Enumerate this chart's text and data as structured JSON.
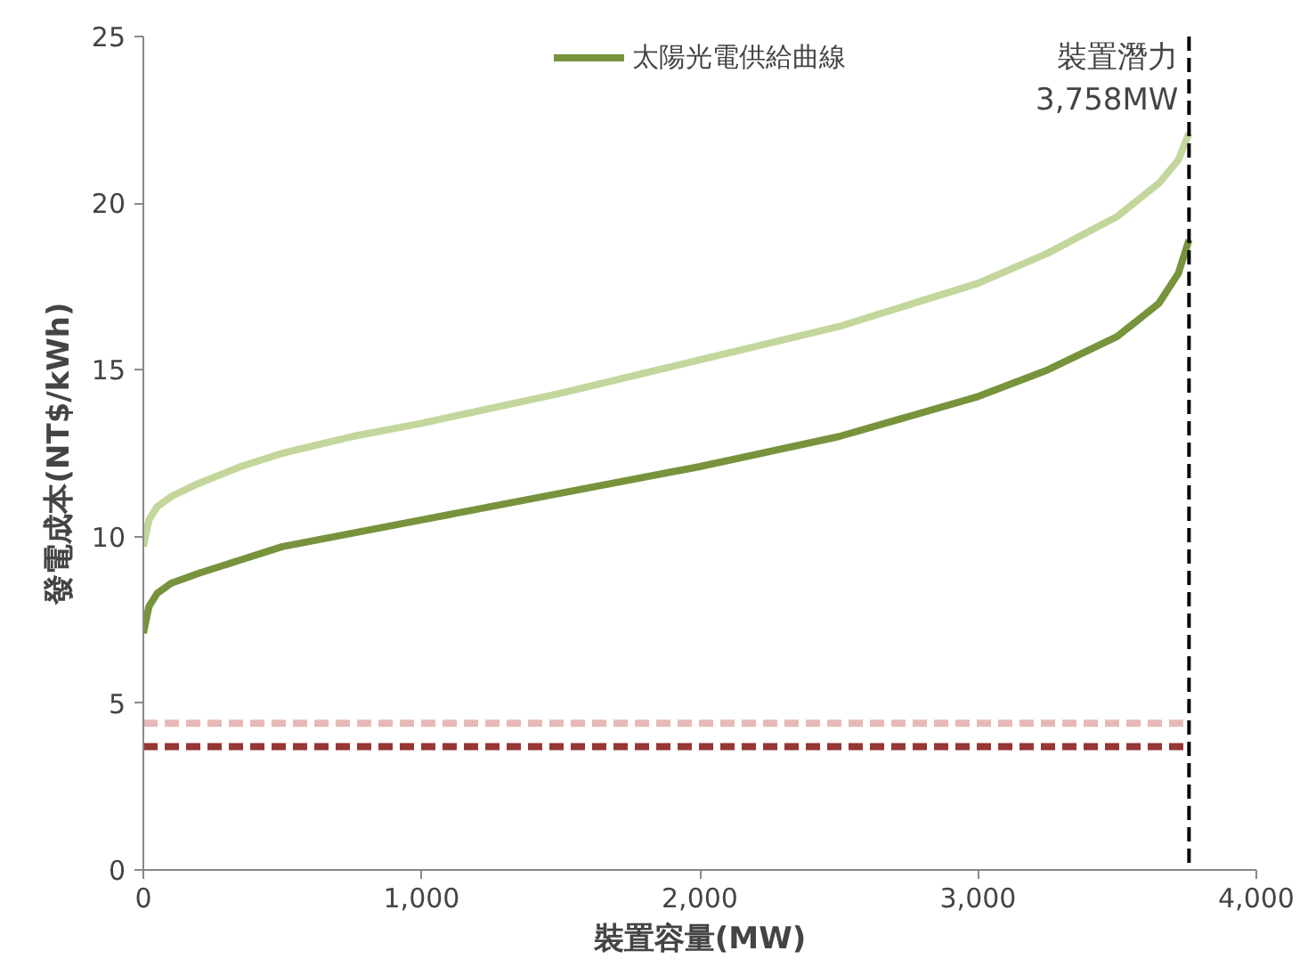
{
  "chart_data": {
    "type": "line",
    "xlabel": "裝置容量(MW)",
    "ylabel": "發電成本(NT$/kWh)",
    "xlim": [
      0,
      4000
    ],
    "ylim": [
      0,
      25
    ],
    "xticks": [
      0,
      {
        "value": 1000,
        "label": "1,000"
      },
      {
        "value": 2000,
        "label": "2,000"
      },
      {
        "value": 3000,
        "label": "3,000"
      },
      {
        "value": 4000,
        "label": "4,000"
      }
    ],
    "yticks": [
      0,
      5,
      10,
      15,
      20,
      25
    ],
    "grid": false,
    "legend": "top",
    "marker": "none",
    "series": [
      {
        "name": "太陽光電供給曲線",
        "color": "#77933c",
        "line_style": "solid",
        "x": [
          0,
          20,
          50,
          100,
          200,
          350,
          500,
          750,
          1000,
          1500,
          2000,
          2500,
          3000,
          3250,
          3500,
          3650,
          3720,
          3758
        ],
        "values": [
          7.1,
          7.9,
          8.3,
          8.6,
          8.9,
          9.3,
          9.7,
          10.1,
          10.5,
          11.3,
          12.1,
          13.0,
          14.2,
          15.0,
          16.0,
          17.0,
          17.9,
          18.9
        ]
      },
      {
        "color": "#c3d69b",
        "line_style": "solid",
        "x": [
          0,
          20,
          50,
          100,
          200,
          350,
          500,
          750,
          1000,
          1500,
          2000,
          2500,
          3000,
          3250,
          3500,
          3650,
          3720,
          3758
        ],
        "values": [
          9.7,
          10.5,
          10.9,
          11.2,
          11.6,
          12.1,
          12.5,
          13.0,
          13.4,
          14.3,
          15.3,
          16.3,
          17.6,
          18.5,
          19.6,
          20.6,
          21.3,
          22.1
        ]
      },
      {
        "color": "#e6b9b8",
        "line_style": "dashed",
        "x": [
          0,
          3758
        ],
        "values": [
          4.4,
          4.4
        ]
      },
      {
        "color": "#953735",
        "line_style": "dashed",
        "x": [
          0,
          3758
        ],
        "values": [
          3.7,
          3.7
        ]
      }
    ],
    "ref_lines": [
      {
        "axis": "x",
        "value": 3758,
        "label": "裝置潛力\n3,758MW",
        "color": "#000000",
        "line_style": "dashed"
      }
    ]
  }
}
